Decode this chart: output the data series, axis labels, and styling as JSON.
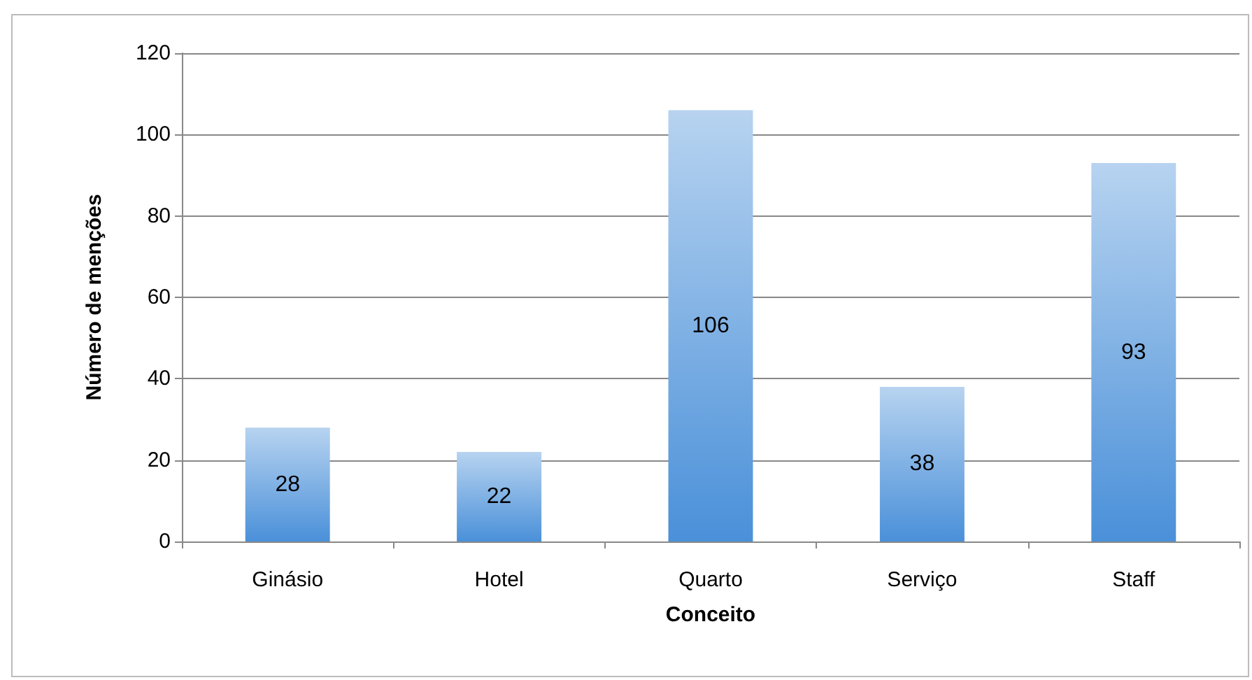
{
  "chart_data": {
    "type": "bar",
    "xlabel": "Conceito",
    "ylabel": "Número de menções",
    "categories": [
      "Ginásio",
      "Hotel",
      "Quarto",
      "Serviço",
      "Staff"
    ],
    "values": [
      28,
      22,
      106,
      38,
      93
    ],
    "color": "#4a90d9",
    "ylim": [
      0,
      120
    ],
    "yticks": [
      0,
      20,
      40,
      60,
      80,
      100,
      120
    ],
    "grid": "y",
    "data_labels": true
  }
}
